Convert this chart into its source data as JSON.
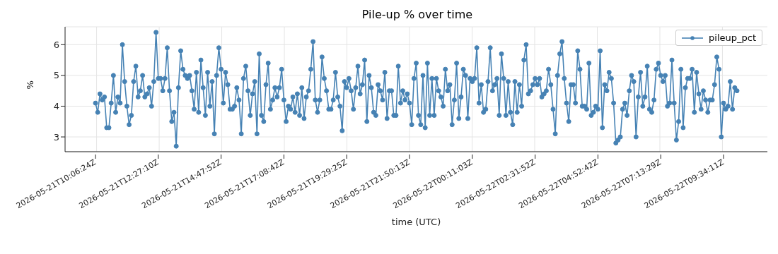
{
  "chart_data": {
    "type": "line",
    "title": "Pile-up % over time",
    "xlabel": "time (UTC)",
    "ylabel": "%",
    "categories": [
      "2026-05-21T10:06:24Z",
      null,
      null,
      null,
      null,
      null,
      null,
      null,
      null,
      null,
      null,
      null,
      null,
      null,
      null,
      null,
      null,
      null,
      null,
      null,
      null,
      null,
      null,
      null,
      null,
      null,
      null,
      null,
      "2026-05-21T12:27:10Z",
      null,
      null,
      null,
      null,
      null,
      null,
      null,
      null,
      null,
      null,
      null,
      null,
      null,
      null,
      null,
      null,
      null,
      null,
      null,
      null,
      null,
      null,
      null,
      null,
      null,
      null,
      null,
      "2026-05-21T14:47:52Z",
      null,
      null,
      null,
      null,
      null,
      null,
      null,
      null,
      null,
      null,
      null,
      null,
      null,
      null,
      null,
      null,
      null,
      null,
      null,
      null,
      null,
      null,
      null,
      null,
      null,
      null,
      null,
      "2026-05-21T17:08:42Z",
      null,
      null,
      null,
      null,
      null,
      null,
      null,
      null,
      null,
      null,
      null,
      null,
      null,
      null,
      null,
      null,
      null,
      null,
      null,
      null,
      null,
      null,
      null,
      null,
      null,
      null,
      null,
      "2026-05-21T19:29:25Z",
      null,
      null,
      null,
      null,
      null,
      null,
      null,
      null,
      null,
      null,
      null,
      null,
      null,
      null,
      null,
      null,
      null,
      null,
      null,
      null,
      null,
      null,
      null,
      null,
      null,
      null,
      null,
      "2026-05-21T21:50:13Z",
      null,
      null,
      null,
      null,
      null,
      null,
      null,
      null,
      null,
      null,
      null,
      null,
      null,
      null,
      null,
      null,
      null,
      null,
      null,
      null,
      null,
      null,
      null,
      null,
      null,
      null,
      null,
      "2026-05-22T00:11:03Z",
      null,
      null,
      null,
      null,
      null,
      null,
      null,
      null,
      null,
      null,
      null,
      null,
      null,
      null,
      null,
      null,
      null,
      null,
      null,
      null,
      null,
      null,
      null,
      null,
      null,
      null,
      null,
      "2026-05-22T02:31:52Z",
      null,
      null,
      null,
      null,
      null,
      null,
      null,
      null,
      null,
      null,
      null,
      null,
      null,
      null,
      null,
      null,
      null,
      null,
      null,
      null,
      null,
      null,
      null,
      null,
      null,
      null,
      null,
      "2026-05-22T04:52:42Z",
      null,
      null,
      null,
      null,
      null,
      null,
      null,
      null,
      null,
      null,
      null,
      null,
      null,
      null,
      null,
      null,
      null,
      null,
      null,
      null,
      null,
      null,
      null,
      null,
      null,
      null,
      null,
      "2026-05-22T07:13:29Z",
      null,
      null,
      null,
      null,
      null,
      null,
      null,
      null,
      null,
      null,
      null,
      null,
      null,
      null,
      null,
      null,
      null,
      null,
      null,
      null,
      null,
      null,
      null,
      null,
      null,
      null,
      null,
      "2026-05-22T09:34:11Z",
      null,
      null,
      null,
      null,
      null,
      null
    ],
    "series": [
      {
        "name": "pileup_pct",
        "color": "#4682b4",
        "values": [
          4.1,
          3.8,
          4.4,
          4.2,
          4.3,
          3.3,
          3.3,
          4.1,
          5.0,
          3.8,
          4.3,
          4.1,
          6.0,
          4.8,
          4.0,
          3.4,
          3.7,
          4.8,
          5.3,
          4.3,
          4.5,
          5.0,
          4.3,
          4.4,
          4.6,
          4.0,
          4.8,
          6.4,
          4.9,
          4.9,
          4.5,
          4.9,
          5.9,
          4.5,
          3.5,
          3.8,
          2.7,
          4.6,
          5.8,
          5.2,
          5.0,
          4.9,
          5.0,
          4.5,
          3.9,
          5.1,
          3.8,
          5.5,
          4.6,
          3.7,
          5.1,
          4.0,
          4.8,
          3.1,
          5.0,
          5.9,
          5.2,
          4.1,
          5.1,
          4.7,
          3.9,
          3.9,
          4.0,
          4.6,
          4.2,
          3.1,
          4.9,
          5.3,
          4.5,
          3.7,
          4.4,
          4.8,
          3.1,
          5.7,
          3.7,
          3.5,
          4.7,
          5.4,
          3.9,
          4.2,
          4.6,
          4.3,
          4.6,
          5.2,
          4.2,
          3.5,
          4.0,
          3.9,
          4.3,
          3.8,
          4.4,
          3.7,
          4.6,
          3.6,
          4.3,
          4.5,
          5.2,
          6.1,
          4.2,
          3.8,
          4.2,
          5.6,
          4.9,
          4.5,
          3.9,
          3.9,
          4.2,
          5.1,
          4.3,
          4.0,
          3.2,
          4.8,
          4.6,
          4.9,
          4.5,
          3.9,
          4.6,
          5.3,
          4.4,
          4.7,
          5.5,
          3.5,
          5.0,
          4.6,
          3.8,
          3.7,
          4.7,
          4.5,
          4.2,
          5.1,
          3.6,
          4.5,
          4.5,
          3.7,
          3.7,
          5.3,
          4.1,
          4.5,
          4.2,
          4.4,
          4.1,
          3.4,
          4.9,
          5.4,
          3.7,
          3.4,
          5.0,
          3.3,
          5.4,
          3.7,
          4.9,
          3.7,
          4.9,
          4.5,
          4.3,
          4.0,
          5.2,
          4.5,
          4.7,
          3.4,
          4.2,
          5.4,
          3.6,
          4.3,
          5.2,
          5.0,
          3.6,
          4.9,
          4.8,
          4.9,
          5.9,
          4.1,
          4.7,
          3.8,
          3.9,
          4.8,
          5.9,
          4.5,
          4.7,
          4.9,
          3.7,
          5.7,
          4.9,
          3.7,
          4.8,
          3.8,
          3.4,
          4.8,
          3.8,
          4.7,
          4.0,
          5.5,
          6.0,
          4.4,
          4.5,
          4.7,
          4.9,
          4.7,
          4.9,
          4.3,
          4.4,
          4.5,
          5.2,
          4.7,
          3.9,
          3.1,
          5.0,
          5.7,
          6.1,
          4.9,
          4.1,
          3.5,
          4.7,
          4.7,
          4.1,
          5.8,
          5.2,
          4.0,
          4.0,
          3.9,
          5.4,
          3.7,
          3.8,
          4.0,
          3.9,
          5.8,
          3.3,
          4.7,
          4.5,
          5.1,
          4.9,
          4.1,
          2.8,
          2.9,
          3.0,
          3.9,
          4.1,
          3.7,
          4.5,
          5.0,
          4.8,
          3.0,
          4.3,
          5.1,
          4.0,
          4.3,
          5.3,
          3.9,
          3.8,
          4.2,
          5.2,
          5.4,
          5.0,
          4.8,
          5.0,
          4.0,
          4.1,
          5.5,
          4.1,
          2.9,
          3.5,
          5.2,
          3.3,
          4.6,
          4.9,
          4.9,
          5.2,
          3.8,
          5.1,
          4.4,
          3.9,
          4.5,
          4.2,
          3.8,
          4.2,
          4.2,
          4.7,
          5.6,
          5.2,
          3.0,
          4.1,
          3.9,
          4.0,
          4.8,
          3.9,
          4.6,
          4.5
        ]
      }
    ],
    "ylim": [
      2.52,
      6.58
    ],
    "yticks": [
      3,
      4,
      5,
      6
    ],
    "grid": true,
    "legend": "top right",
    "marker": "circle"
  }
}
